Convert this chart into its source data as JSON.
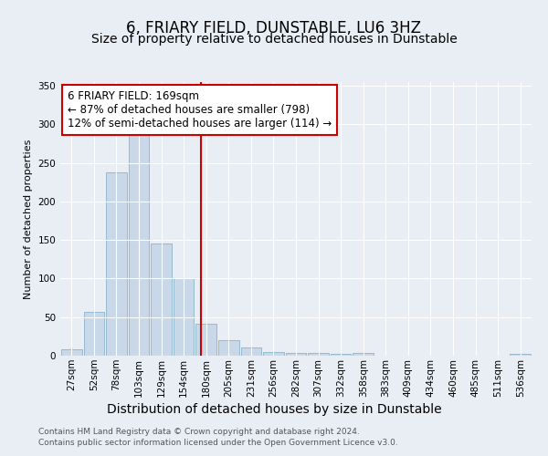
{
  "title": "6, FRIARY FIELD, DUNSTABLE, LU6 3HZ",
  "subtitle": "Size of property relative to detached houses in Dunstable",
  "xlabel": "Distribution of detached houses by size in Dunstable",
  "ylabel": "Number of detached properties",
  "bar_labels": [
    "27sqm",
    "52sqm",
    "78sqm",
    "103sqm",
    "129sqm",
    "154sqm",
    "180sqm",
    "205sqm",
    "231sqm",
    "256sqm",
    "282sqm",
    "307sqm",
    "332sqm",
    "358sqm",
    "383sqm",
    "409sqm",
    "434sqm",
    "460sqm",
    "485sqm",
    "511sqm",
    "536sqm"
  ],
  "bar_values": [
    8,
    57,
    238,
    290,
    145,
    101,
    42,
    20,
    11,
    5,
    3,
    4,
    2,
    3,
    0,
    0,
    0,
    0,
    0,
    0,
    2
  ],
  "bar_color": "#c8d8e8",
  "bar_edgecolor": "#8ab4cc",
  "background_color": "#e8eef4",
  "plot_bg_color": "#e8eef4",
  "vline_x": 5.77,
  "vline_color": "#cc0000",
  "ylim": [
    0,
    355
  ],
  "yticks": [
    0,
    50,
    100,
    150,
    200,
    250,
    300,
    350
  ],
  "annotation_title": "6 FRIARY FIELD: 169sqm",
  "annotation_line1": "← 87% of detached houses are smaller (798)",
  "annotation_line2": "12% of semi-detached houses are larger (114) →",
  "footer1": "Contains HM Land Registry data © Crown copyright and database right 2024.",
  "footer2": "Contains public sector information licensed under the Open Government Licence v3.0.",
  "title_fontsize": 12,
  "subtitle_fontsize": 10,
  "xlabel_fontsize": 10,
  "ylabel_fontsize": 8,
  "tick_fontsize": 7.5,
  "annotation_fontsize": 8.5,
  "footer_fontsize": 6.5
}
